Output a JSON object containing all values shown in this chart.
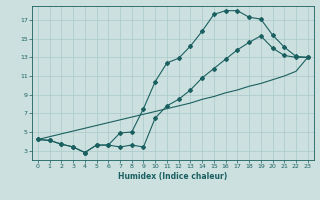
{
  "title": "",
  "xlabel": "Humidex (Indice chaleur)",
  "ylabel": "",
  "xlim": [
    -0.5,
    23.5
  ],
  "ylim": [
    2,
    18.5
  ],
  "xticks": [
    0,
    1,
    2,
    3,
    4,
    5,
    6,
    7,
    8,
    9,
    10,
    11,
    12,
    13,
    14,
    15,
    16,
    17,
    18,
    19,
    20,
    21,
    22,
    23
  ],
  "yticks": [
    3,
    5,
    7,
    9,
    11,
    13,
    15,
    17
  ],
  "bg_color": "#cde0e0",
  "grid_color": "#b0cccc",
  "line_color": "#1a6060",
  "line1_x": [
    0,
    1,
    2,
    3,
    4,
    5,
    6,
    7,
    8,
    9,
    10,
    11,
    12,
    13,
    14,
    15,
    16,
    17,
    18,
    19,
    20,
    21,
    22,
    23
  ],
  "line1_y": [
    4.2,
    4.1,
    3.7,
    3.4,
    2.8,
    3.6,
    3.6,
    4.9,
    5.0,
    7.5,
    10.4,
    12.4,
    12.9,
    14.2,
    15.8,
    17.6,
    18.0,
    18.0,
    17.3,
    17.1,
    15.4,
    14.1,
    13.1,
    13.0
  ],
  "line2_x": [
    0,
    1,
    2,
    3,
    4,
    5,
    6,
    7,
    8,
    9,
    10,
    11,
    12,
    13,
    14,
    15,
    16,
    17,
    18,
    19,
    20,
    21,
    22,
    23
  ],
  "line2_y": [
    4.2,
    4.1,
    3.7,
    3.4,
    2.8,
    3.6,
    3.6,
    3.4,
    3.6,
    3.4,
    6.5,
    7.8,
    8.5,
    9.5,
    10.8,
    11.8,
    12.8,
    13.8,
    14.6,
    15.3,
    14.0,
    13.2,
    13.0,
    13.0
  ],
  "line3_x": [
    0,
    1,
    2,
    3,
    4,
    5,
    6,
    7,
    8,
    9,
    10,
    11,
    12,
    13,
    14,
    15,
    16,
    17,
    18,
    19,
    20,
    21,
    22,
    23
  ],
  "line3_y": [
    4.2,
    4.5,
    4.8,
    5.1,
    5.4,
    5.7,
    6.0,
    6.3,
    6.6,
    6.9,
    7.2,
    7.5,
    7.8,
    8.1,
    8.5,
    8.8,
    9.2,
    9.5,
    9.9,
    10.2,
    10.6,
    11.0,
    11.5,
    13.0
  ]
}
